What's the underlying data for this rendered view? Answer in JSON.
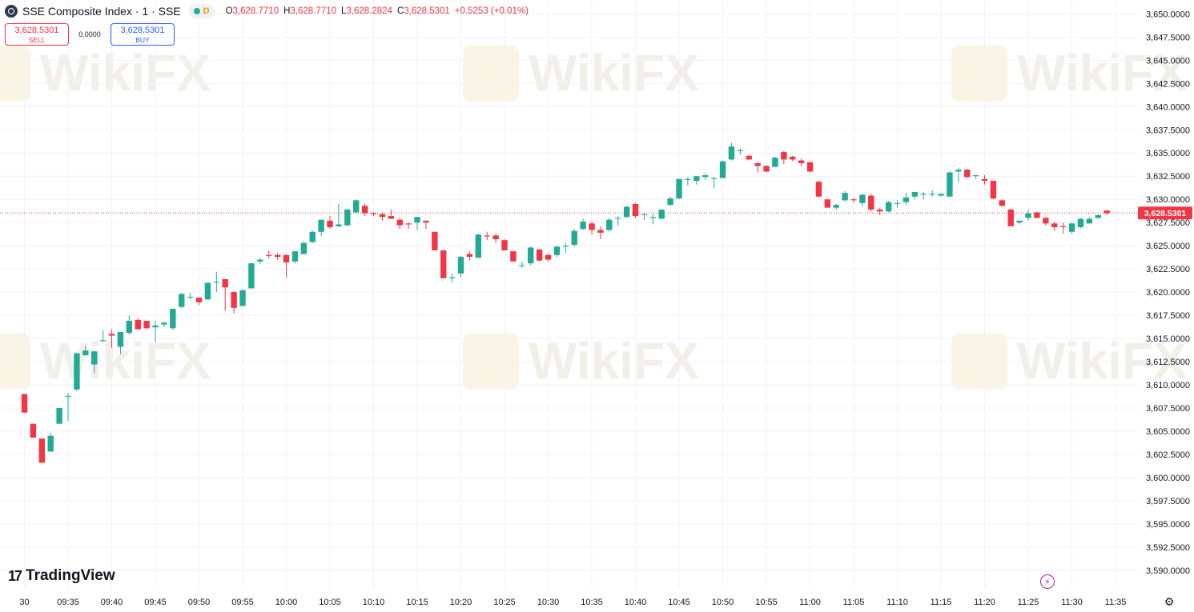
{
  "header": {
    "symbol_title": "SSE Composite Index · 1 · SSE",
    "status_letter": "D",
    "ohlc": {
      "o_label": "O",
      "o": "3,628.7710",
      "h_label": "H",
      "h": "3,628.7710",
      "l_label": "L",
      "l": "3,628.2824",
      "c_label": "C",
      "c": "3,628.5301",
      "change": "+0.5253 (+0.01%)"
    }
  },
  "trade": {
    "sell_price": "3,628.5301",
    "sell_label": "SELL",
    "spread": "0.0000",
    "buy_price": "3,628.5301",
    "buy_label": "BUY"
  },
  "branding": {
    "logo_text": "TradingView",
    "watermark": "WikiFX"
  },
  "colors": {
    "up": "#22ab94",
    "down": "#f23645",
    "grid": "#f0f3fa",
    "axis_text": "#131722",
    "price_line": "#f23645",
    "watermark": "#e8e2d6",
    "watermark_badge": "#f7ecd2"
  },
  "icons": {
    "symbol": "index-icon",
    "alert": "lightning-icon",
    "settings": "gear-icon"
  },
  "chart_data": {
    "type": "candlestick",
    "interval": "1 minute",
    "y_axis": {
      "min": 3588.0,
      "max": 3651.5,
      "position": "right",
      "ticks": [
        3590,
        3592.5,
        3595,
        3597.5,
        3600,
        3602.5,
        3605,
        3607.5,
        3610,
        3612.5,
        3615,
        3617.5,
        3620,
        3622.5,
        3625,
        3627.5,
        3630,
        3632.5,
        3635,
        3637.5,
        3640,
        3642.5,
        3645,
        3647.5,
        3650
      ],
      "tick_labels": [
        "3,590.0000",
        "3,592.5000",
        "3,595.0000",
        "3,597.5000",
        "3,600.0000",
        "3,602.5000",
        "3,605.0000",
        "3,607.5000",
        "3,610.0000",
        "3,612.5000",
        "3,615.0000",
        "3,617.5000",
        "3,620.0000",
        "3,622.5000",
        "3,625.0000",
        "3,627.5000",
        "3,630.0000",
        "3,632.5000",
        "3,635.0000",
        "3,637.5000",
        "3,640.0000",
        "3,642.5000",
        "3,645.0000",
        "3,647.5000",
        "3,650.0000"
      ]
    },
    "x_axis": {
      "start_time": "09:30",
      "end_time": "11:38",
      "tick_labels": [
        "30",
        "09:35",
        "09:40",
        "09:45",
        "09:50",
        "09:55",
        "10:00",
        "10:05",
        "10:10",
        "10:15",
        "10:20",
        "10:25",
        "10:30",
        "10:35",
        "10:40",
        "10:45",
        "10:50",
        "10:55",
        "11:00",
        "11:05",
        "11:10",
        "11:15",
        "11:20",
        "11:25",
        "11:30",
        "11:35"
      ],
      "tick_times": [
        "09:30",
        "09:35",
        "09:40",
        "09:45",
        "09:50",
        "09:55",
        "10:00",
        "10:05",
        "10:10",
        "10:15",
        "10:20",
        "10:25",
        "10:30",
        "10:35",
        "10:40",
        "10:45",
        "10:50",
        "10:55",
        "11:00",
        "11:05",
        "11:10",
        "11:15",
        "11:20",
        "11:25",
        "11:30",
        "11:35"
      ]
    },
    "grid": true,
    "last_price": 3628.5301,
    "last_price_label": "3,628.5301",
    "candles": [
      {
        "t": "09:30",
        "o": 3609.0,
        "h": 3609.0,
        "l": 3607.0,
        "c": 3607.0
      },
      {
        "t": "09:31",
        "o": 3605.8,
        "h": 3605.8,
        "l": 3604.3,
        "c": 3604.3
      },
      {
        "t": "09:32",
        "o": 3604.2,
        "h": 3604.2,
        "l": 3601.6,
        "c": 3601.6
      },
      {
        "t": "09:33",
        "o": 3602.8,
        "h": 3604.8,
        "l": 3602.8,
        "c": 3604.5
      },
      {
        "t": "09:34",
        "o": 3605.8,
        "h": 3607.5,
        "l": 3605.8,
        "c": 3607.5
      },
      {
        "t": "09:35",
        "o": 3608.8,
        "h": 3609.1,
        "l": 3606.1,
        "c": 3608.8
      },
      {
        "t": "09:36",
        "o": 3609.5,
        "h": 3613.5,
        "l": 3609.3,
        "c": 3613.4
      },
      {
        "t": "09:37",
        "o": 3613.2,
        "h": 3614.2,
        "l": 3613.1,
        "c": 3613.7
      },
      {
        "t": "09:38",
        "o": 3612.2,
        "h": 3613.7,
        "l": 3611.3,
        "c": 3613.6
      },
      {
        "t": "09:39",
        "o": 3614.7,
        "h": 3615.9,
        "l": 3614.6,
        "c": 3614.8
      },
      {
        "t": "09:40",
        "o": 3615.5,
        "h": 3616.0,
        "l": 3614.0,
        "c": 3615.3
      },
      {
        "t": "09:41",
        "o": 3614.1,
        "h": 3615.7,
        "l": 3613.3,
        "c": 3615.7
      },
      {
        "t": "09:42",
        "o": 3615.6,
        "h": 3617.5,
        "l": 3615.4,
        "c": 3616.9
      },
      {
        "t": "09:43",
        "o": 3617.0,
        "h": 3617.2,
        "l": 3615.9,
        "c": 3616.0
      },
      {
        "t": "09:44",
        "o": 3616.9,
        "h": 3616.9,
        "l": 3616.0,
        "c": 3616.1
      },
      {
        "t": "09:45",
        "o": 3616.2,
        "h": 3616.9,
        "l": 3614.6,
        "c": 3616.4
      },
      {
        "t": "09:46",
        "o": 3616.5,
        "h": 3616.8,
        "l": 3616.2,
        "c": 3616.7
      },
      {
        "t": "09:47",
        "o": 3616.1,
        "h": 3618.2,
        "l": 3615.9,
        "c": 3618.2
      },
      {
        "t": "09:48",
        "o": 3618.4,
        "h": 3619.9,
        "l": 3618.3,
        "c": 3619.8
      },
      {
        "t": "09:49",
        "o": 3619.5,
        "h": 3619.9,
        "l": 3619.2,
        "c": 3619.5
      },
      {
        "t": "09:50",
        "o": 3619.4,
        "h": 3619.4,
        "l": 3618.6,
        "c": 3618.9
      },
      {
        "t": "09:51",
        "o": 3619.2,
        "h": 3621.0,
        "l": 3619.2,
        "c": 3621.0
      },
      {
        "t": "09:52",
        "o": 3621.1,
        "h": 3622.2,
        "l": 3620.0,
        "c": 3621.1
      },
      {
        "t": "09:53",
        "o": 3621.4,
        "h": 3621.4,
        "l": 3618.0,
        "c": 3620.5
      },
      {
        "t": "09:54",
        "o": 3620.0,
        "h": 3620.1,
        "l": 3617.7,
        "c": 3618.3
      },
      {
        "t": "09:55",
        "o": 3618.5,
        "h": 3620.3,
        "l": 3618.5,
        "c": 3620.2
      },
      {
        "t": "09:56",
        "o": 3620.4,
        "h": 3623.2,
        "l": 3620.4,
        "c": 3623.1
      },
      {
        "t": "09:57",
        "o": 3623.3,
        "h": 3623.7,
        "l": 3623.0,
        "c": 3623.5
      },
      {
        "t": "09:58",
        "o": 3624.0,
        "h": 3624.5,
        "l": 3623.6,
        "c": 3623.9
      },
      {
        "t": "09:59",
        "o": 3624.0,
        "h": 3624.2,
        "l": 3623.5,
        "c": 3623.8
      },
      {
        "t": "10:00",
        "o": 3624.0,
        "h": 3624.1,
        "l": 3621.6,
        "c": 3623.2
      },
      {
        "t": "10:01",
        "o": 3623.3,
        "h": 3624.4,
        "l": 3623.1,
        "c": 3624.4
      },
      {
        "t": "10:02",
        "o": 3624.1,
        "h": 3625.5,
        "l": 3624.1,
        "c": 3625.3
      },
      {
        "t": "10:03",
        "o": 3625.4,
        "h": 3626.6,
        "l": 3625.3,
        "c": 3626.5
      },
      {
        "t": "10:04",
        "o": 3626.5,
        "h": 3627.8,
        "l": 3626.0,
        "c": 3627.8
      },
      {
        "t": "10:05",
        "o": 3627.7,
        "h": 3628.2,
        "l": 3626.8,
        "c": 3627.0
      },
      {
        "t": "10:06",
        "o": 3627.1,
        "h": 3629.5,
        "l": 3627.0,
        "c": 3627.3
      },
      {
        "t": "10:07",
        "o": 3627.2,
        "h": 3629.0,
        "l": 3627.1,
        "c": 3628.9
      },
      {
        "t": "10:08",
        "o": 3628.6,
        "h": 3630.0,
        "l": 3628.4,
        "c": 3629.9
      },
      {
        "t": "10:09",
        "o": 3629.3,
        "h": 3629.5,
        "l": 3628.2,
        "c": 3628.5
      },
      {
        "t": "10:10",
        "o": 3628.5,
        "h": 3628.6,
        "l": 3628.2,
        "c": 3628.4
      },
      {
        "t": "10:11",
        "o": 3628.4,
        "h": 3628.6,
        "l": 3627.7,
        "c": 3628.1
      },
      {
        "t": "10:12",
        "o": 3628.2,
        "h": 3628.9,
        "l": 3627.9,
        "c": 3627.9
      },
      {
        "t": "10:13",
        "o": 3627.8,
        "h": 3628.0,
        "l": 3626.8,
        "c": 3627.2
      },
      {
        "t": "10:14",
        "o": 3627.4,
        "h": 3627.5,
        "l": 3626.8,
        "c": 3627.3
      },
      {
        "t": "10:15",
        "o": 3627.5,
        "h": 3628.0,
        "l": 3626.7,
        "c": 3628.1
      },
      {
        "t": "10:16",
        "o": 3627.7,
        "h": 3627.7,
        "l": 3626.8,
        "c": 3627.5
      },
      {
        "t": "10:17",
        "o": 3626.5,
        "h": 3626.5,
        "l": 3624.5,
        "c": 3624.5
      },
      {
        "t": "10:18",
        "o": 3624.5,
        "h": 3624.5,
        "l": 3621.5,
        "c": 3621.5
      },
      {
        "t": "10:19",
        "o": 3621.5,
        "h": 3622.0,
        "l": 3621.0,
        "c": 3621.6
      },
      {
        "t": "10:20",
        "o": 3622.0,
        "h": 3623.9,
        "l": 3621.6,
        "c": 3623.8
      },
      {
        "t": "10:21",
        "o": 3624.1,
        "h": 3624.4,
        "l": 3623.4,
        "c": 3623.8
      },
      {
        "t": "10:22",
        "o": 3623.7,
        "h": 3626.3,
        "l": 3623.7,
        "c": 3626.2
      },
      {
        "t": "10:23",
        "o": 3626.1,
        "h": 3626.5,
        "l": 3625.6,
        "c": 3626.0
      },
      {
        "t": "10:24",
        "o": 3626.1,
        "h": 3626.3,
        "l": 3625.3,
        "c": 3625.7
      },
      {
        "t": "10:25",
        "o": 3625.6,
        "h": 3625.7,
        "l": 3624.5,
        "c": 3624.5
      },
      {
        "t": "10:26",
        "o": 3624.4,
        "h": 3624.4,
        "l": 3623.3,
        "c": 3623.3
      },
      {
        "t": "10:27",
        "o": 3622.9,
        "h": 3623.3,
        "l": 3622.6,
        "c": 3622.9
      },
      {
        "t": "10:28",
        "o": 3623.1,
        "h": 3624.9,
        "l": 3622.9,
        "c": 3624.8
      },
      {
        "t": "10:29",
        "o": 3624.6,
        "h": 3624.6,
        "l": 3623.3,
        "c": 3623.4
      },
      {
        "t": "10:30",
        "o": 3624.0,
        "h": 3624.1,
        "l": 3623.3,
        "c": 3623.5
      },
      {
        "t": "10:31",
        "o": 3624.0,
        "h": 3625.0,
        "l": 3623.8,
        "c": 3624.9
      },
      {
        "t": "10:32",
        "o": 3624.9,
        "h": 3625.3,
        "l": 3624.2,
        "c": 3625.0
      },
      {
        "t": "10:33",
        "o": 3625.1,
        "h": 3626.8,
        "l": 3624.9,
        "c": 3626.6
      },
      {
        "t": "10:34",
        "o": 3626.8,
        "h": 3627.9,
        "l": 3626.7,
        "c": 3627.6
      },
      {
        "t": "10:35",
        "o": 3627.4,
        "h": 3627.6,
        "l": 3626.2,
        "c": 3626.7
      },
      {
        "t": "10:36",
        "o": 3626.7,
        "h": 3627.1,
        "l": 3625.7,
        "c": 3626.4
      },
      {
        "t": "10:37",
        "o": 3626.7,
        "h": 3628.0,
        "l": 3626.5,
        "c": 3627.8
      },
      {
        "t": "10:38",
        "o": 3628.0,
        "h": 3628.2,
        "l": 3627.2,
        "c": 3628.0
      },
      {
        "t": "10:39",
        "o": 3628.1,
        "h": 3629.3,
        "l": 3628.0,
        "c": 3629.2
      },
      {
        "t": "10:40",
        "o": 3629.5,
        "h": 3629.6,
        "l": 3628.0,
        "c": 3628.2
      },
      {
        "t": "10:41",
        "o": 3628.4,
        "h": 3628.6,
        "l": 3627.8,
        "c": 3628.4
      },
      {
        "t": "10:42",
        "o": 3628.0,
        "h": 3628.4,
        "l": 3627.3,
        "c": 3628.1
      },
      {
        "t": "10:43",
        "o": 3627.9,
        "h": 3628.9,
        "l": 3627.9,
        "c": 3628.9
      },
      {
        "t": "10:44",
        "o": 3629.4,
        "h": 3630.3,
        "l": 3629.3,
        "c": 3630.1
      },
      {
        "t": "10:45",
        "o": 3630.1,
        "h": 3632.2,
        "l": 3630.0,
        "c": 3632.2
      },
      {
        "t": "10:46",
        "o": 3632.1,
        "h": 3632.4,
        "l": 3631.5,
        "c": 3632.2
      },
      {
        "t": "10:47",
        "o": 3632.0,
        "h": 3632.5,
        "l": 3631.6,
        "c": 3632.5
      },
      {
        "t": "10:48",
        "o": 3632.4,
        "h": 3632.8,
        "l": 3632.1,
        "c": 3632.6
      },
      {
        "t": "10:49",
        "o": 3632.2,
        "h": 3632.4,
        "l": 3631.2,
        "c": 3632.3
      },
      {
        "t": "10:50",
        "o": 3632.3,
        "h": 3634.2,
        "l": 3632.3,
        "c": 3634.1
      },
      {
        "t": "10:51",
        "o": 3634.3,
        "h": 3636.1,
        "l": 3634.2,
        "c": 3635.7
      },
      {
        "t": "10:52",
        "o": 3635.2,
        "h": 3635.5,
        "l": 3634.8,
        "c": 3635.3
      },
      {
        "t": "10:53",
        "o": 3634.7,
        "h": 3634.8,
        "l": 3634.2,
        "c": 3634.3
      },
      {
        "t": "10:54",
        "o": 3633.9,
        "h": 3634.1,
        "l": 3632.9,
        "c": 3633.6
      },
      {
        "t": "10:55",
        "o": 3633.6,
        "h": 3633.7,
        "l": 3632.9,
        "c": 3633.0
      },
      {
        "t": "10:56",
        "o": 3633.5,
        "h": 3634.6,
        "l": 3633.5,
        "c": 3634.5
      },
      {
        "t": "10:57",
        "o": 3635.1,
        "h": 3635.2,
        "l": 3633.8,
        "c": 3634.3
      },
      {
        "t": "10:58",
        "o": 3634.6,
        "h": 3634.7,
        "l": 3634.1,
        "c": 3634.3
      },
      {
        "t": "10:59",
        "o": 3634.2,
        "h": 3634.4,
        "l": 3633.6,
        "c": 3633.9
      },
      {
        "t": "11:00",
        "o": 3634.0,
        "h": 3634.1,
        "l": 3632.9,
        "c": 3633.0
      },
      {
        "t": "11:01",
        "o": 3631.9,
        "h": 3632.0,
        "l": 3630.2,
        "c": 3630.3
      },
      {
        "t": "11:02",
        "o": 3630.0,
        "h": 3630.0,
        "l": 3629.1,
        "c": 3629.1
      },
      {
        "t": "11:03",
        "o": 3629.1,
        "h": 3629.5,
        "l": 3628.9,
        "c": 3629.4
      },
      {
        "t": "11:04",
        "o": 3629.9,
        "h": 3630.9,
        "l": 3629.8,
        "c": 3630.7
      },
      {
        "t": "11:05",
        "o": 3630.0,
        "h": 3630.2,
        "l": 3629.6,
        "c": 3629.9
      },
      {
        "t": "11:06",
        "o": 3629.6,
        "h": 3630.6,
        "l": 3629.2,
        "c": 3630.5
      },
      {
        "t": "11:07",
        "o": 3630.4,
        "h": 3630.6,
        "l": 3628.7,
        "c": 3628.9
      },
      {
        "t": "11:08",
        "o": 3628.9,
        "h": 3629.1,
        "l": 3628.3,
        "c": 3628.7
      },
      {
        "t": "11:09",
        "o": 3628.7,
        "h": 3629.8,
        "l": 3628.6,
        "c": 3629.7
      },
      {
        "t": "11:10",
        "o": 3629.6,
        "h": 3629.9,
        "l": 3629.1,
        "c": 3629.6
      },
      {
        "t": "11:11",
        "o": 3629.7,
        "h": 3630.7,
        "l": 3629.4,
        "c": 3630.2
      },
      {
        "t": "11:12",
        "o": 3630.3,
        "h": 3630.8,
        "l": 3630.0,
        "c": 3630.8
      },
      {
        "t": "11:13",
        "o": 3630.5,
        "h": 3630.8,
        "l": 3630.0,
        "c": 3630.6
      },
      {
        "t": "11:14",
        "o": 3630.5,
        "h": 3631.0,
        "l": 3630.3,
        "c": 3630.6
      },
      {
        "t": "11:15",
        "o": 3630.4,
        "h": 3630.6,
        "l": 3630.3,
        "c": 3630.6
      },
      {
        "t": "11:16",
        "o": 3630.3,
        "h": 3633.0,
        "l": 3630.3,
        "c": 3632.9
      },
      {
        "t": "11:17",
        "o": 3633.0,
        "h": 3633.4,
        "l": 3631.9,
        "c": 3633.2
      },
      {
        "t": "11:18",
        "o": 3633.2,
        "h": 3633.3,
        "l": 3632.3,
        "c": 3632.4
      },
      {
        "t": "11:19",
        "o": 3632.5,
        "h": 3632.6,
        "l": 3632.2,
        "c": 3632.6
      },
      {
        "t": "11:20",
        "o": 3632.2,
        "h": 3632.6,
        "l": 3631.6,
        "c": 3632.0
      },
      {
        "t": "11:21",
        "o": 3632.0,
        "h": 3632.0,
        "l": 3630.0,
        "c": 3630.1
      },
      {
        "t": "11:22",
        "o": 3629.9,
        "h": 3630.0,
        "l": 3629.2,
        "c": 3629.3
      },
      {
        "t": "11:23",
        "o": 3628.9,
        "h": 3629.0,
        "l": 3627.1,
        "c": 3627.1
      },
      {
        "t": "11:24",
        "o": 3627.5,
        "h": 3627.7,
        "l": 3627.3,
        "c": 3627.7
      },
      {
        "t": "11:25",
        "o": 3628.0,
        "h": 3628.9,
        "l": 3627.7,
        "c": 3628.5
      },
      {
        "t": "11:26",
        "o": 3628.6,
        "h": 3628.7,
        "l": 3628.0,
        "c": 3628.0
      },
      {
        "t": "11:27",
        "o": 3628.0,
        "h": 3628.1,
        "l": 3627.2,
        "c": 3627.4
      },
      {
        "t": "11:28",
        "o": 3627.4,
        "h": 3627.6,
        "l": 3626.6,
        "c": 3627.0
      },
      {
        "t": "11:29",
        "o": 3627.1,
        "h": 3627.5,
        "l": 3626.3,
        "c": 3627.0
      },
      {
        "t": "11:30",
        "o": 3626.5,
        "h": 3627.5,
        "l": 3626.3,
        "c": 3627.4
      },
      {
        "t": "11:31",
        "o": 3627.0,
        "h": 3628.0,
        "l": 3626.9,
        "c": 3627.9
      },
      {
        "t": "11:32",
        "o": 3627.4,
        "h": 3628.1,
        "l": 3627.4,
        "c": 3627.9
      },
      {
        "t": "11:33",
        "o": 3628.0,
        "h": 3628.4,
        "l": 3627.9,
        "c": 3628.3
      },
      {
        "t": "11:34",
        "o": 3628.8,
        "h": 3628.8,
        "l": 3628.3,
        "c": 3628.5
      }
    ]
  }
}
